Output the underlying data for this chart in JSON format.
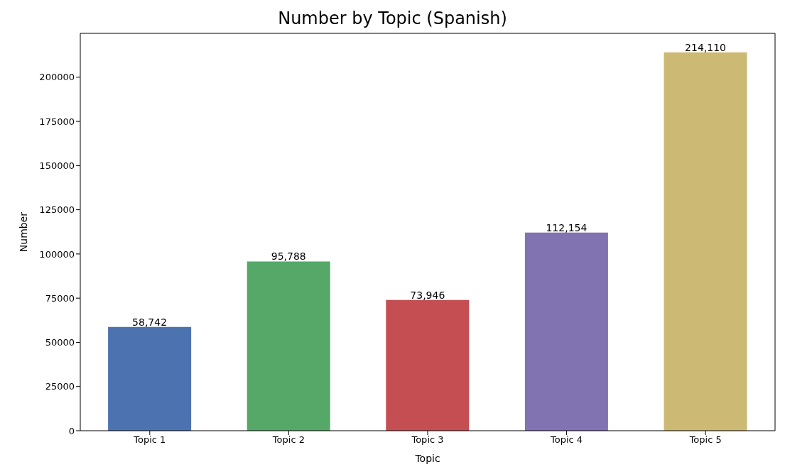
{
  "chart_data": {
    "type": "bar",
    "title": "Number by Topic (Spanish)",
    "xlabel": "Topic",
    "ylabel": "Number",
    "categories": [
      "Topic 1",
      "Topic 2",
      "Topic 3",
      "Topic 4",
      "Topic 5"
    ],
    "values": [
      58742,
      95788,
      73946,
      112154,
      214110
    ],
    "colors": [
      "#4c72b0",
      "#55a868",
      "#c44e52",
      "#8172b2",
      "#ccb974"
    ],
    "value_labels": [
      "58,742",
      "95,788",
      "73,946",
      "112,154",
      "214,110"
    ],
    "ylim": [
      0,
      224816
    ],
    "yticks": [
      0,
      25000,
      50000,
      75000,
      100000,
      125000,
      150000,
      175000,
      200000
    ],
    "grid": false,
    "legend": false
  }
}
